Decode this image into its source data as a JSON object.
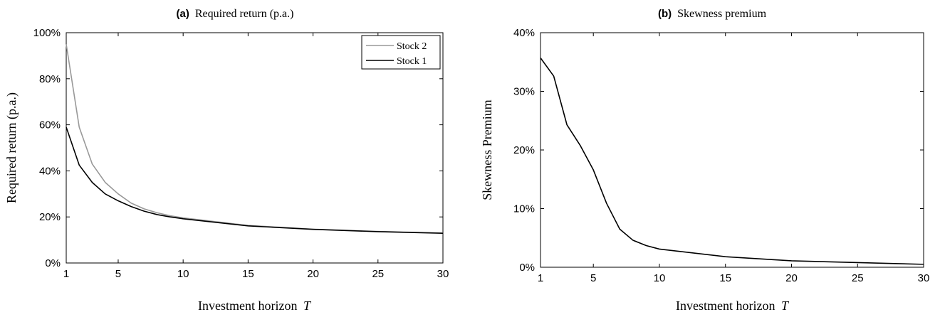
{
  "chart_data": [
    {
      "type": "line",
      "panel_tag": "(a)",
      "title": "Required return (p.a.)",
      "xlabel": "Investment horizon",
      "xlabel_var": "T",
      "ylabel": "Required return (p.a.)",
      "xlim": [
        1,
        30
      ],
      "ylim": [
        0,
        100
      ],
      "xticks": [
        1,
        5,
        10,
        15,
        20,
        25,
        30
      ],
      "yticks": [
        0,
        20,
        40,
        60,
        80,
        100
      ],
      "ytick_labels": [
        "0%",
        "20%",
        "40%",
        "60%",
        "80%",
        "100%"
      ],
      "grid": false,
      "legend_position": "top-right",
      "series": [
        {
          "name": "Stock 2",
          "color": "#999999",
          "x": [
            1,
            2,
            3,
            4,
            5,
            6,
            7,
            8,
            9,
            10,
            15,
            20,
            25,
            30
          ],
          "y": [
            95,
            59,
            43,
            35,
            30,
            26,
            23.5,
            21.8,
            20.5,
            19.6,
            16.3,
            14.7,
            13.7,
            13.0
          ]
        },
        {
          "name": "Stock 1",
          "color": "#000000",
          "x": [
            1,
            2,
            3,
            4,
            5,
            6,
            7,
            8,
            9,
            10,
            15,
            20,
            25,
            30
          ],
          "y": [
            59,
            42.5,
            35,
            30,
            27,
            24.5,
            22.5,
            21,
            20,
            19.2,
            16.1,
            14.6,
            13.6,
            12.9
          ]
        }
      ]
    },
    {
      "type": "line",
      "panel_tag": "(b)",
      "title": "Skewness premium",
      "xlabel": "Investment horizon",
      "xlabel_var": "T",
      "ylabel": "Skewness Premium",
      "xlim": [
        1,
        30
      ],
      "ylim": [
        0,
        40
      ],
      "xticks": [
        1,
        5,
        10,
        15,
        20,
        25,
        30
      ],
      "yticks": [
        0,
        10,
        20,
        30,
        40
      ],
      "ytick_labels": [
        "0%",
        "10%",
        "20%",
        "30%",
        "40%"
      ],
      "grid": false,
      "series": [
        {
          "color": "#000000",
          "x": [
            1,
            2,
            3,
            4,
            5,
            6,
            7,
            8,
            9,
            10,
            15,
            20,
            25,
            30
          ],
          "y": [
            35.7,
            32.6,
            24.3,
            20.8,
            16.6,
            10.9,
            6.5,
            4.6,
            3.7,
            3.1,
            1.8,
            1.1,
            0.8,
            0.5
          ]
        }
      ]
    }
  ]
}
